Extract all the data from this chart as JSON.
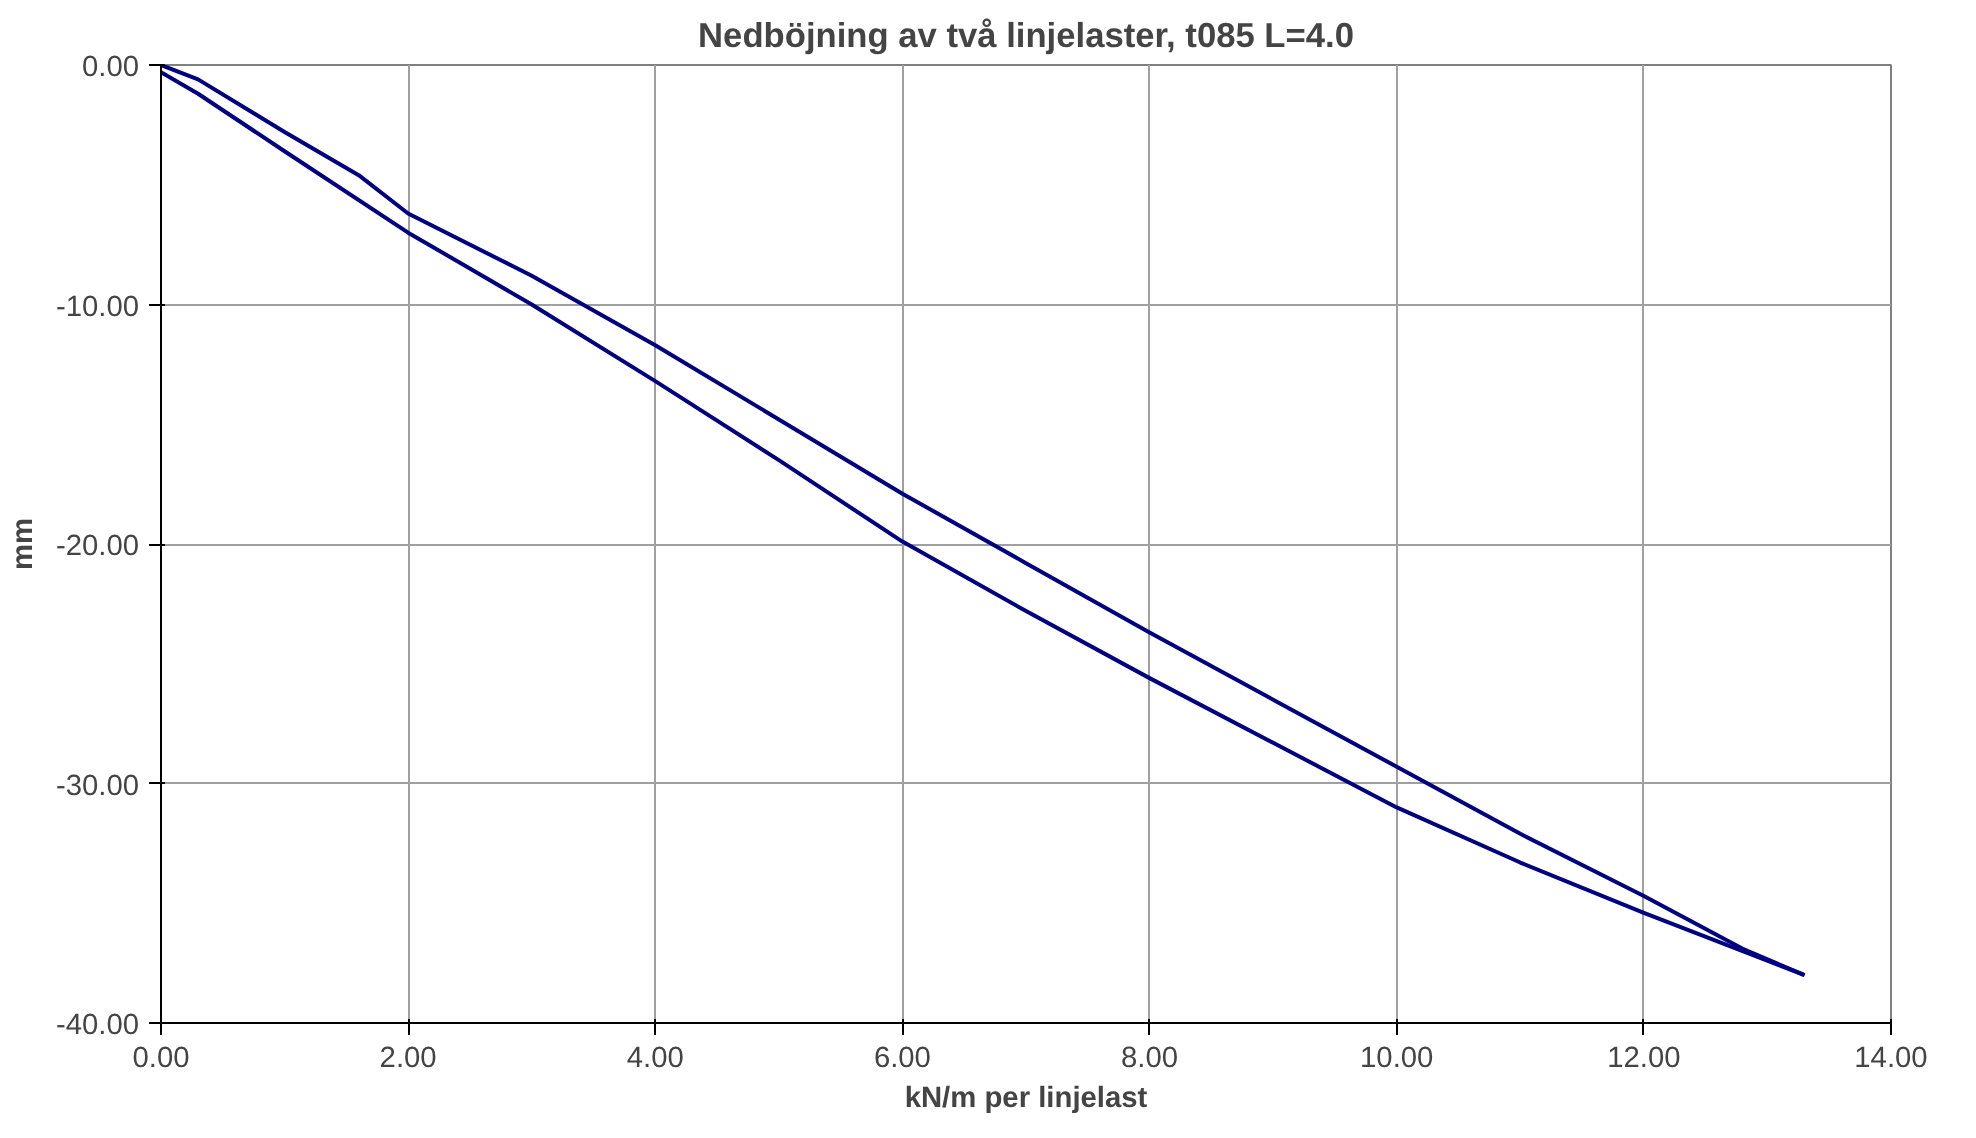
{
  "chart_data": {
    "type": "line",
    "title": "Nedböjning av två linjelaster, t085 L=4.0",
    "xlabel": "kN/m per linjelast",
    "ylabel": "mm",
    "series": [
      {
        "color": "#000080",
        "x": [
          0,
          0.3,
          1.0,
          1.6,
          2.0,
          3.0,
          4.0,
          5.0,
          6.0,
          7.0,
          8.0,
          9.0,
          10.0,
          11.0,
          12.0,
          12.8,
          13.3
        ],
        "values": [
          0,
          -0.6,
          -2.8,
          -4.6,
          -6.2,
          -8.8,
          -11.7,
          -14.8,
          -17.9,
          -20.8,
          -23.7,
          -26.5,
          -29.3,
          -32.1,
          -34.7,
          -36.9,
          -38.0
        ]
      },
      {
        "color": "#000080",
        "x": [
          0,
          0.3,
          1.0,
          2.0,
          3.0,
          4.0,
          5.0,
          6.0,
          7.0,
          8.0,
          9.0,
          10.0,
          11.0,
          12.0,
          12.8,
          13.3
        ],
        "values": [
          -0.3,
          -1.2,
          -3.6,
          -7.0,
          -10.0,
          -13.2,
          -16.5,
          -19.9,
          -22.8,
          -25.6,
          -28.3,
          -31.0,
          -33.3,
          -35.4,
          -37.0,
          -38.0
        ]
      }
    ],
    "xlim": [
      0,
      14
    ],
    "xticks": [
      {
        "value": 0,
        "label": "0.00"
      },
      {
        "value": 2,
        "label": "2.00"
      },
      {
        "value": 4,
        "label": "4.00"
      },
      {
        "value": 6,
        "label": "6.00"
      },
      {
        "value": 8,
        "label": "8.00"
      },
      {
        "value": 10,
        "label": "10.00"
      },
      {
        "value": 12,
        "label": "12.00"
      },
      {
        "value": 14,
        "label": "14.00"
      }
    ],
    "ylim": [
      -40,
      0
    ],
    "yticks": [
      {
        "value": -40,
        "label": "-40.00"
      },
      {
        "value": -30,
        "label": "-30.00"
      },
      {
        "value": -20,
        "label": "-20.00"
      },
      {
        "value": -10,
        "label": "-10.00"
      },
      {
        "value": 0,
        "label": "0.00"
      }
    ],
    "grid": true
  }
}
